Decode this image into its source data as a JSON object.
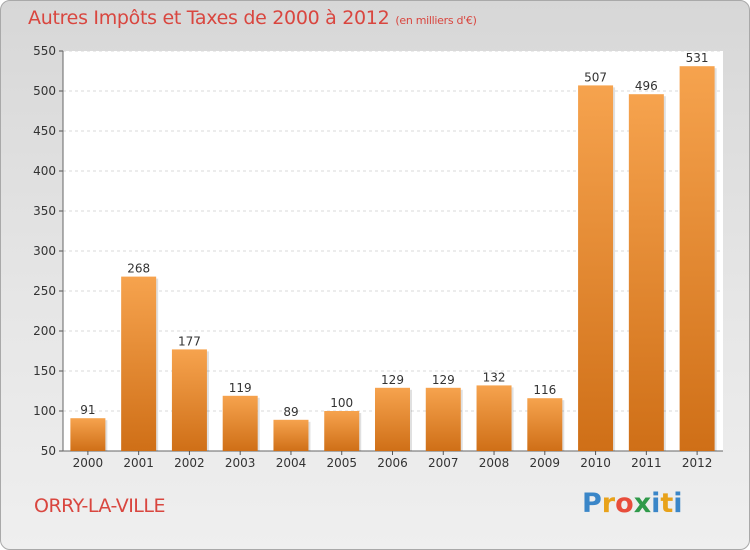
{
  "title": "Autres Impôts et Taxes de 2000 à 2012",
  "title_unit": "(en milliers d'€)",
  "city": "ORRY-LA-VILLE",
  "logo": {
    "letters": [
      "P",
      "r",
      "o",
      "x",
      "i",
      "t",
      "i"
    ],
    "colors": [
      "#3a86c8",
      "#e8a21a",
      "#e84d3b",
      "#2f9a4a",
      "#3a86c8",
      "#e8a21a",
      "#3a86c8"
    ]
  },
  "colors": {
    "bar_light": "#f6a34e",
    "bar_dark": "#cf6f17",
    "title": "#d9463f"
  },
  "chart_data": {
    "type": "bar",
    "categories": [
      "2000",
      "2001",
      "2002",
      "2003",
      "2004",
      "2005",
      "2006",
      "2007",
      "2008",
      "2009",
      "2010",
      "2011",
      "2012"
    ],
    "values": [
      91,
      268,
      177,
      119,
      89,
      100,
      129,
      129,
      132,
      116,
      507,
      496,
      531
    ],
    "data_labels": [
      "91",
      "268",
      "177",
      "119",
      "89",
      "100",
      "129",
      "129",
      "132",
      "116",
      "507",
      "496",
      "531"
    ],
    "title": "Autres Impôts et Taxes de 2000 à 2012",
    "subtitle": "(en milliers d'€)",
    "xlabel": "",
    "ylabel": "",
    "ylim": [
      50,
      550
    ],
    "yticks": [
      "50",
      "100",
      "150",
      "200",
      "250",
      "300",
      "350",
      "400",
      "450",
      "500",
      "550"
    ],
    "grid": true,
    "legend": "none"
  }
}
